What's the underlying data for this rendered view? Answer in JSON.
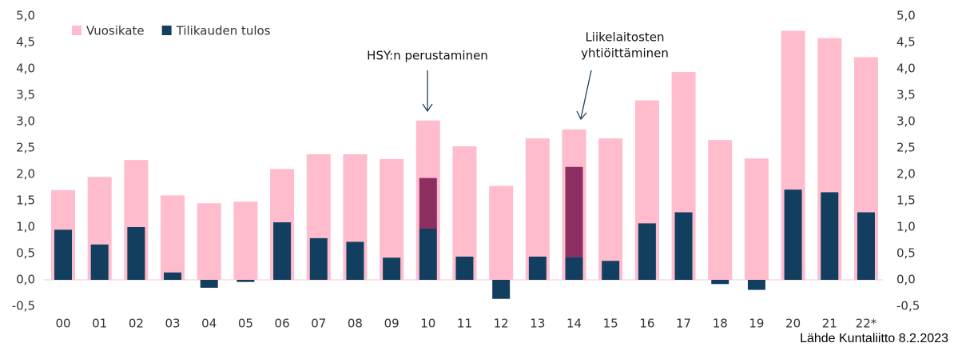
{
  "chart_data": {
    "type": "bar",
    "categories": [
      "00",
      "01",
      "02",
      "03",
      "04",
      "05",
      "06",
      "07",
      "08",
      "09",
      "10",
      "11",
      "12",
      "13",
      "14",
      "15",
      "16",
      "17",
      "18",
      "19",
      "20",
      "21",
      "22*"
    ],
    "series": [
      {
        "name": "Vuosikate",
        "color": "#ffbccd",
        "values": [
          1.7,
          1.95,
          2.27,
          1.6,
          1.45,
          1.48,
          2.1,
          2.38,
          2.38,
          2.29,
          3.02,
          2.53,
          1.78,
          2.68,
          2.85,
          2.68,
          3.4,
          3.94,
          2.65,
          2.3,
          4.72,
          4.58,
          4.22
        ]
      },
      {
        "name": "Tilikauden tulos",
        "color": "#123f5f",
        "values": [
          0.95,
          0.67,
          1.0,
          0.14,
          -0.15,
          -0.04,
          1.09,
          0.79,
          0.72,
          0.42,
          0.97,
          0.44,
          -0.36,
          0.44,
          0.43,
          0.36,
          1.07,
          1.28,
          -0.08,
          -0.19,
          1.71,
          1.66,
          1.28
        ]
      },
      {
        "color": "#8c2e62",
        "values": [
          null,
          null,
          null,
          null,
          null,
          null,
          null,
          null,
          null,
          null,
          0.96,
          null,
          null,
          null,
          1.71,
          null,
          null,
          null,
          null,
          null,
          null,
          null,
          null
        ]
      }
    ],
    "ylim": [
      -0.5,
      5.0
    ],
    "yticks": [
      {
        "value": -0.5,
        "label": "-0,5"
      },
      {
        "value": 0,
        "label": "0,0"
      },
      {
        "value": 0.5,
        "label": "0,5"
      },
      {
        "value": 1,
        "label": "1,0"
      },
      {
        "value": 1.5,
        "label": "1,5"
      },
      {
        "value": 2,
        "label": "2,0"
      },
      {
        "value": 2.5,
        "label": "2,5"
      },
      {
        "value": 3,
        "label": "3,0"
      },
      {
        "value": 3.5,
        "label": "3,5"
      },
      {
        "value": 4,
        "label": "4,0"
      },
      {
        "value": 4.5,
        "label": "4,5"
      },
      {
        "value": 5,
        "label": "5,0"
      }
    ],
    "y2lim": [
      -0.5,
      5.0
    ],
    "y2ticks": [
      {
        "value": -0.5,
        "label": "-0,5"
      },
      {
        "value": 0,
        "label": "0,0"
      },
      {
        "value": 0.5,
        "label": "0,5"
      },
      {
        "value": 1,
        "label": "1,0"
      },
      {
        "value": 1.5,
        "label": "1,5"
      },
      {
        "value": 2,
        "label": "2,0"
      },
      {
        "value": 2.5,
        "label": "2,5"
      },
      {
        "value": 3,
        "label": "3,0"
      },
      {
        "value": 3.5,
        "label": "3,5"
      },
      {
        "value": 4,
        "label": "4,0"
      },
      {
        "value": 4.5,
        "label": "4,5"
      },
      {
        "value": 5,
        "label": "5,0"
      }
    ],
    "legend": "top-left",
    "annotations": [
      {
        "lines": [
          "HSY:n perustaminen"
        ]
      },
      {
        "lines": [
          "Liikelaitosten",
          "yhtiöittäminen"
        ]
      }
    ],
    "source": "Lähde Kuntaliitto 8.2.2023"
  }
}
